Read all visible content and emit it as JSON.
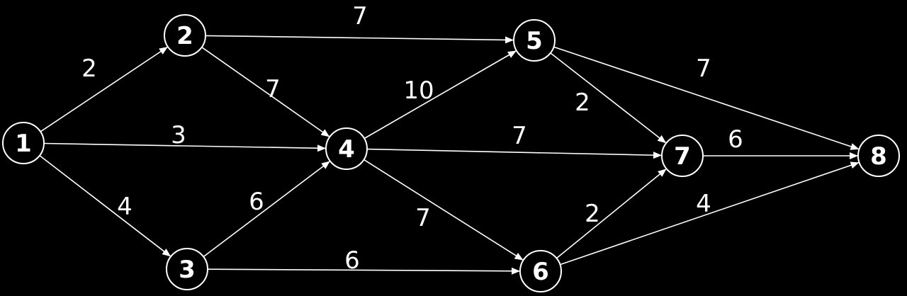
{
  "colors": {
    "background": "#000000",
    "stroke": "#ffffff",
    "text": "#ffffff"
  },
  "nodes": [
    {
      "id": "1",
      "label": "1"
    },
    {
      "id": "2",
      "label": "2"
    },
    {
      "id": "3",
      "label": "3"
    },
    {
      "id": "4",
      "label": "4"
    },
    {
      "id": "5",
      "label": "5"
    },
    {
      "id": "6",
      "label": "6"
    },
    {
      "id": "7",
      "label": "7"
    },
    {
      "id": "8",
      "label": "8"
    }
  ],
  "edges": [
    {
      "from": "1",
      "to": "2",
      "weight": "2"
    },
    {
      "from": "1",
      "to": "4",
      "weight": "3"
    },
    {
      "from": "1",
      "to": "3",
      "weight": "4"
    },
    {
      "from": "2",
      "to": "5",
      "weight": "7"
    },
    {
      "from": "2",
      "to": "4",
      "weight": "7"
    },
    {
      "from": "3",
      "to": "4",
      "weight": "6"
    },
    {
      "from": "3",
      "to": "6",
      "weight": "6"
    },
    {
      "from": "4",
      "to": "5",
      "weight": "10"
    },
    {
      "from": "4",
      "to": "7",
      "weight": "7"
    },
    {
      "from": "4",
      "to": "6",
      "weight": "7"
    },
    {
      "from": "5",
      "to": "7",
      "weight": "2"
    },
    {
      "from": "5",
      "to": "8",
      "weight": "7"
    },
    {
      "from": "6",
      "to": "7",
      "weight": "2"
    },
    {
      "from": "6",
      "to": "8",
      "weight": "4"
    },
    {
      "from": "7",
      "to": "8",
      "weight": "6"
    }
  ]
}
